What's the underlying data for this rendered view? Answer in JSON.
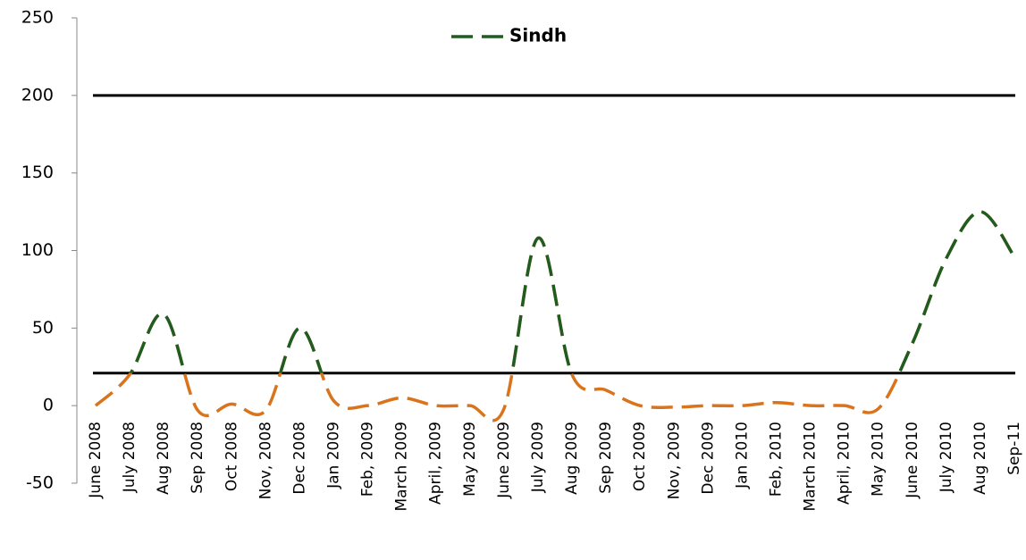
{
  "chart_data": {
    "type": "line",
    "categories": [
      "June 2008",
      "July 2008",
      "Aug 2008",
      "Sep 2008",
      "Oct 2008",
      "Nov, 2008",
      "Dec 2008",
      "Jan 2009",
      "Feb, 2009",
      "March 2009",
      "April, 2009",
      "May 2009",
      "June 2009",
      "July 2009",
      "Aug 2009",
      "Sep 2009",
      "Oct 2009",
      "Nov, 2009",
      "Dec 2009",
      "Jan 2010",
      "Feb, 2010",
      "March 2010",
      "April, 2010",
      "May 2010",
      "June 2010",
      "July 2010",
      "Aug 2010",
      "Sep-11"
    ],
    "series": [
      {
        "name": "Sindh",
        "color": "#1f5c1f",
        "below_color": "#d9731c",
        "values": [
          0,
          20,
          59,
          -3,
          1,
          -3,
          50,
          3,
          0,
          5,
          0,
          0,
          -2,
          108,
          20,
          10,
          0,
          -1,
          0,
          0,
          2,
          0,
          0,
          -2,
          40,
          95,
          125,
          96
        ]
      }
    ],
    "reference_lines": [
      200,
      21
    ],
    "reference_color": "#000000",
    "ylim": [
      -50,
      250
    ],
    "yticks": [
      -50,
      0,
      50,
      100,
      150,
      200,
      250
    ],
    "legend": "top"
  }
}
